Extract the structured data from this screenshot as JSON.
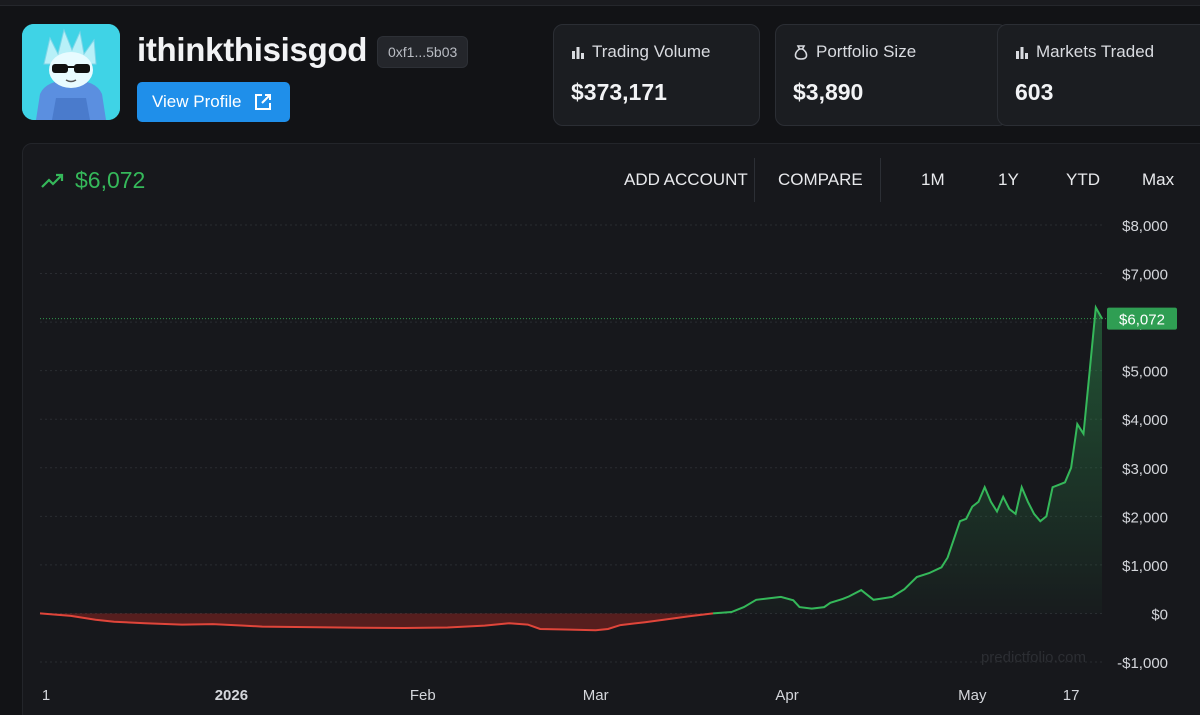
{
  "profile": {
    "username": "ithinkthisisgod",
    "address": "0xf1...5b03",
    "view_profile_label": "View Profile"
  },
  "stats": [
    {
      "label": "Trading Volume",
      "value": "$373,171",
      "icon": "bar-chart-icon"
    },
    {
      "label": "Portfolio Size",
      "value": "$3,890",
      "icon": "money-bag-icon"
    },
    {
      "label": "Markets Traded",
      "value": "603",
      "icon": "bar-chart-icon"
    }
  ],
  "chart_header": {
    "current_value": "$6,072",
    "add_account_label": "ADD ACCOUNT",
    "compare_label": "COMPARE",
    "ranges": [
      "1M",
      "1Y",
      "YTD",
      "Max"
    ]
  },
  "watermark": "predictfolio.com",
  "colors": {
    "accent_blue": "#1f8fea",
    "positive_green": "#35b85a",
    "negative_red": "#e0453a",
    "background": "#121316"
  },
  "chart_data": {
    "type": "area",
    "title": "",
    "xlabel": "",
    "ylabel": "",
    "ylim": [
      -1000,
      8000
    ],
    "yticks": [
      -1000,
      0,
      1000,
      2000,
      3000,
      4000,
      5000,
      6000,
      7000,
      8000
    ],
    "ytick_labels": [
      "-$1,000",
      "$0",
      "$1,000",
      "$2,000",
      "$3,000",
      "$4,000",
      "$5,000",
      "$6,000",
      "$7,000",
      "$8,000"
    ],
    "xlim": [
      "2025-12-01",
      "2026-05-22"
    ],
    "xticks": [
      {
        "date": "2025-12-01",
        "label": "1"
      },
      {
        "date": "2026-01-01",
        "label": "2026"
      },
      {
        "date": "2026-02-01",
        "label": "Feb"
      },
      {
        "date": "2026-03-01",
        "label": "Mar"
      },
      {
        "date": "2026-04-01",
        "label": "Apr"
      },
      {
        "date": "2026-05-01",
        "label": "May"
      },
      {
        "date": "2026-05-17",
        "label": "17"
      }
    ],
    "last_value_label": "$6,072",
    "grid": true,
    "series": [
      {
        "x": [
          "2025-12-01",
          "2025-12-06",
          "2025-12-10",
          "2025-12-13",
          "2025-12-18",
          "2025-12-24",
          "2025-12-29",
          "2026-01-03",
          "2026-01-06",
          "2026-01-15",
          "2026-01-22",
          "2026-01-29",
          "2026-02-05",
          "2026-02-11",
          "2026-02-15",
          "2026-02-18",
          "2026-02-20",
          "2026-02-24",
          "2026-03-01",
          "2026-03-03",
          "2026-03-05",
          "2026-03-09",
          "2026-03-12",
          "2026-03-16",
          "2026-03-20",
          "2026-03-23",
          "2026-03-25",
          "2026-03-27",
          "2026-03-31",
          "2026-04-02",
          "2026-04-03",
          "2026-04-05",
          "2026-04-07",
          "2026-04-08",
          "2026-04-10",
          "2026-04-11",
          "2026-04-13",
          "2026-04-15",
          "2026-04-16",
          "2026-04-18",
          "2026-04-20",
          "2026-04-22",
          "2026-04-24",
          "2026-04-26",
          "2026-04-27",
          "2026-04-29",
          "2026-04-30",
          "2026-05-01",
          "2026-05-02",
          "2026-05-03",
          "2026-05-04",
          "2026-05-05",
          "2026-05-06",
          "2026-05-07",
          "2026-05-08",
          "2026-05-09",
          "2026-05-10",
          "2026-05-11",
          "2026-05-12",
          "2026-05-13",
          "2026-05-14",
          "2026-05-15",
          "2026-05-16",
          "2026-05-17",
          "2026-05-18",
          "2026-05-19",
          "2026-05-20",
          "2026-05-21",
          "2026-05-22"
        ],
        "y": [
          0,
          -50,
          -130,
          -170,
          -200,
          -230,
          -220,
          -250,
          -270,
          -285,
          -295,
          -300,
          -290,
          -250,
          -200,
          -230,
          -320,
          -330,
          -345,
          -320,
          -240,
          -180,
          -130,
          -60,
          0,
          30,
          130,
          280,
          340,
          270,
          130,
          100,
          130,
          220,
          300,
          350,
          480,
          280,
          300,
          340,
          500,
          750,
          830,
          950,
          1150,
          1900,
          1950,
          2200,
          2300,
          2600,
          2300,
          2100,
          2400,
          2150,
          2050,
          2600,
          2300,
          2050,
          1900,
          2000,
          2600,
          2650,
          2700,
          3000,
          3900,
          3700,
          5000,
          6300,
          6072
        ]
      }
    ]
  }
}
